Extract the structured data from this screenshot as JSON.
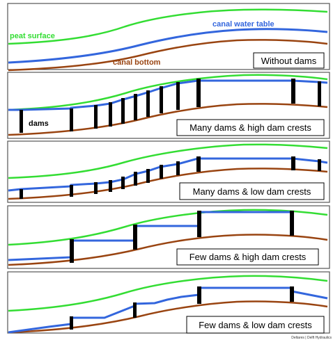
{
  "colors": {
    "peat": "#33dd33",
    "water": "#3366dd",
    "bottom": "#994411",
    "dam": "#000000",
    "frame": "#555555"
  },
  "labels": {
    "peat_surface": "peat surface",
    "canal_water_table": "canal water table",
    "canal_bottom": "canal bottom",
    "dams": "dams"
  },
  "panels": [
    {
      "title": "Without dams"
    },
    {
      "title": "Many dams & high dam crests"
    },
    {
      "title": "Many dams & low dam crests"
    },
    {
      "title": "Few dams & high dam crests"
    },
    {
      "title": "Few dams & low dam crests"
    }
  ],
  "credit": "Deltares | Delft Hydraulics"
}
